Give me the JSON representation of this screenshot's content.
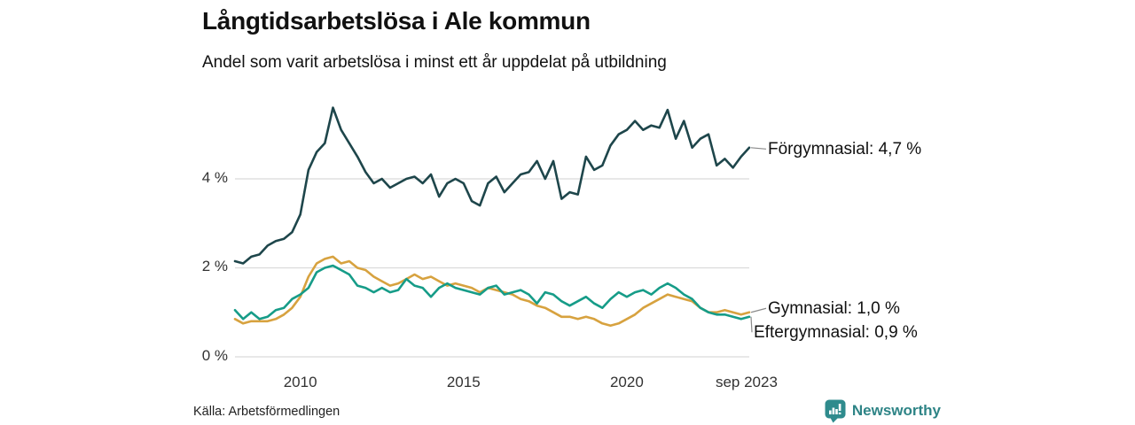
{
  "header": {
    "title": "Långtidsarbetslösa i Ale kommun",
    "subtitle": "Andel som varit arbetslösa i minst ett år uppdelat på utbildning"
  },
  "source": {
    "label": "Källa: Arbetsförmedlingen"
  },
  "branding": {
    "name": "Newsworthy",
    "color": "#2F8B8D"
  },
  "colors": {
    "forgymnasial": "#1E464B",
    "gymnasial": "#D7A23F",
    "eftergymnasial": "#169C88",
    "gridline": "#DBDBDB",
    "leader": "#8A8A8A",
    "axis_text": "#333333"
  },
  "chart_data": {
    "type": "line",
    "title": "Långtidsarbetslösa i Ale kommun",
    "subtitle": "Andel som varit arbetslösa i minst ett år uppdelat på utbildning",
    "unit": "%",
    "grid": "horizontal-only",
    "legend_position": "end-of-line-labels",
    "xlim": [
      2008.0,
      2023.75
    ],
    "ylim": [
      0,
      5.87
    ],
    "x_start": 2008.0,
    "x_step_years": 0.25,
    "x_ticks": [
      {
        "value": 2010,
        "label": "2010"
      },
      {
        "value": 2015,
        "label": "2015"
      },
      {
        "value": 2020,
        "label": "2020"
      },
      {
        "value": 2023.667,
        "label": "sep 2023"
      }
    ],
    "y_ticks": [
      {
        "value": 0,
        "label": "0 %"
      },
      {
        "value": 2,
        "label": "2 %"
      },
      {
        "value": 4,
        "label": "4 %"
      }
    ],
    "series": [
      {
        "name": "Förgymnasial",
        "color": "#1E464B",
        "end_value": 4.7,
        "end_label": "Förgymnasial: 4,7 %",
        "values": [
          2.15,
          2.1,
          2.25,
          2.3,
          2.5,
          2.6,
          2.65,
          2.8,
          3.2,
          4.2,
          4.6,
          4.8,
          5.6,
          5.1,
          4.8,
          4.5,
          4.15,
          3.9,
          4.0,
          3.8,
          3.9,
          4.0,
          4.05,
          3.9,
          4.1,
          3.6,
          3.9,
          4.0,
          3.9,
          3.5,
          3.4,
          3.9,
          4.05,
          3.7,
          3.9,
          4.1,
          4.15,
          4.4,
          4.0,
          4.4,
          3.55,
          3.7,
          3.65,
          4.5,
          4.2,
          4.3,
          4.75,
          5.0,
          5.1,
          5.3,
          5.1,
          5.2,
          5.15,
          5.55,
          4.9,
          5.3,
          4.7,
          4.9,
          5.0,
          4.3,
          4.45,
          4.25,
          4.5,
          4.7
        ]
      },
      {
        "name": "Gymnasial",
        "color": "#D7A23F",
        "end_value": 1.0,
        "end_label": "Gymnasial: 1,0 %",
        "values": [
          0.85,
          0.75,
          0.8,
          0.8,
          0.8,
          0.85,
          0.95,
          1.1,
          1.35,
          1.8,
          2.1,
          2.2,
          2.25,
          2.1,
          2.15,
          2.0,
          1.95,
          1.8,
          1.7,
          1.6,
          1.65,
          1.75,
          1.85,
          1.75,
          1.8,
          1.7,
          1.6,
          1.65,
          1.6,
          1.55,
          1.45,
          1.55,
          1.5,
          1.45,
          1.4,
          1.3,
          1.25,
          1.15,
          1.1,
          1.0,
          0.9,
          0.9,
          0.85,
          0.9,
          0.85,
          0.75,
          0.7,
          0.75,
          0.85,
          0.95,
          1.1,
          1.2,
          1.3,
          1.4,
          1.35,
          1.3,
          1.25,
          1.1,
          1.0,
          1.0,
          1.05,
          1.0,
          0.95,
          1.0
        ]
      },
      {
        "name": "Eftergymnasial",
        "color": "#169C88",
        "end_value": 0.9,
        "end_label": "Eftergymnasial: 0,9 %",
        "values": [
          1.05,
          0.85,
          1.0,
          0.85,
          0.9,
          1.05,
          1.1,
          1.3,
          1.4,
          1.55,
          1.9,
          2.0,
          2.05,
          1.95,
          1.85,
          1.6,
          1.55,
          1.45,
          1.55,
          1.45,
          1.5,
          1.75,
          1.6,
          1.55,
          1.35,
          1.55,
          1.65,
          1.55,
          1.5,
          1.45,
          1.4,
          1.55,
          1.6,
          1.4,
          1.45,
          1.5,
          1.4,
          1.2,
          1.45,
          1.4,
          1.25,
          1.15,
          1.25,
          1.35,
          1.2,
          1.1,
          1.3,
          1.45,
          1.35,
          1.45,
          1.5,
          1.4,
          1.55,
          1.65,
          1.55,
          1.4,
          1.3,
          1.1,
          1.0,
          0.95,
          0.95,
          0.9,
          0.85,
          0.9
        ]
      }
    ]
  }
}
